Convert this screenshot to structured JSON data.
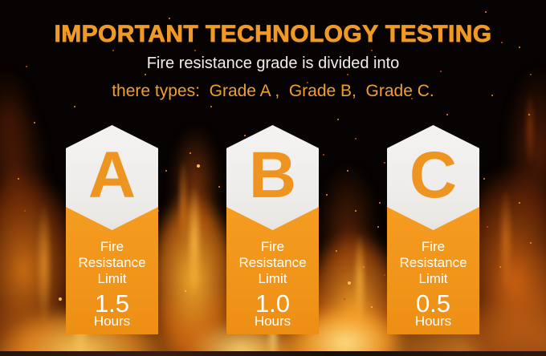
{
  "header": {
    "title": "IMPORTANT TECHNOLOGY TESTING",
    "subtitle": "Fire resistance grade is divided into",
    "types_line": "there types:  Grade A ,  Grade B,  Grade C."
  },
  "grades": [
    {
      "letter": "A",
      "limit_label": "Fire\nResistance\nLimit",
      "value": "1.5",
      "unit": "Hours"
    },
    {
      "letter": "B",
      "limit_label": "Fire\nResistance\nLimit",
      "value": "1.0",
      "unit": "Hours"
    },
    {
      "letter": "C",
      "limit_label": "Fire\nResistance\nLimit",
      "value": "0.5",
      "unit": "Hours"
    }
  ],
  "colors": {
    "title_orange": "#f09a26",
    "types_orange": "#f0a02c",
    "column_orange": "#f2941c",
    "hexagon_fill": "#f2f0ee",
    "letter_orange": "#ee9421",
    "text_white": "#ffffff",
    "background_black": "#070302"
  }
}
